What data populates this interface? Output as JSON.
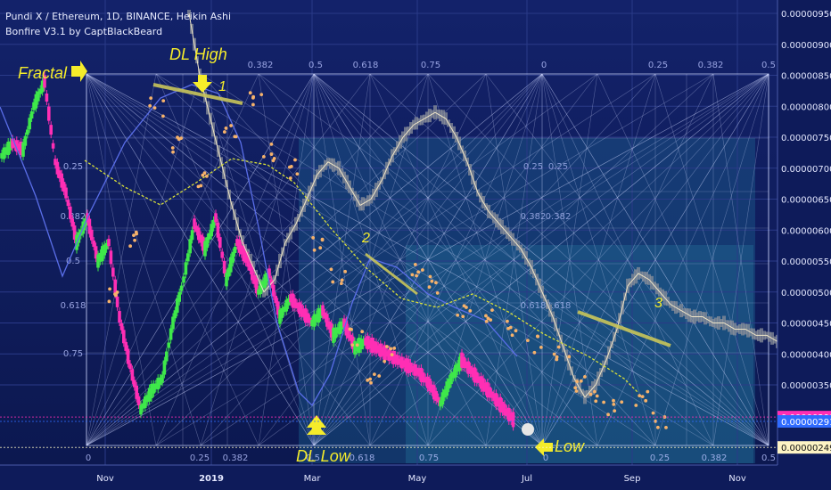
{
  "header": {
    "title": "Pundi X / Ethereum, 1D, BINANCE, Heikin Ashi",
    "indicator": "Bonfire V3.1 by CaptBlackBeard"
  },
  "colors": {
    "background": "#0e1b5a",
    "bull_candle": "#3ee84a",
    "bear_candle": "#ff2eb4",
    "gray_candle": "#8a8f9a",
    "orange_dots": "#f6b26b",
    "yellow_line": "#d8e03a",
    "blue_line": "#5a6ee8",
    "fib_lines": "#d0d8ff",
    "annotation": "#f5ec2a",
    "tag_pink": "#ff2eb4",
    "tag_blue": "#2f6bff",
    "tag_cream": "#fdf3c4"
  },
  "chart_data": {
    "type": "candlestick",
    "title": "Pundi X / Ethereum, 1D, BINANCE, Heikin Ashi",
    "y_ticks": [
      "0.00000950",
      "0.00000900",
      "0.00000850",
      "0.00000800",
      "0.00000750",
      "0.00000700",
      "0.00000650",
      "0.00000600",
      "0.00000550",
      "0.00000500",
      "0.00000450",
      "0.00000400",
      "0.00000350"
    ],
    "y_range": [
      2.4e-06,
      9.7e-06
    ],
    "price_tags": [
      {
        "label": "0.00000298",
        "value": 2.98e-06,
        "color": "#ff2eb4"
      },
      {
        "label": "0.00000291",
        "value": 2.91e-06,
        "color": "#2f6bff"
      },
      {
        "label": "0.00000249",
        "value": 2.49e-06,
        "color": "#fdf3c4"
      }
    ],
    "x_ticks": [
      "Nov",
      "2019",
      "Mar",
      "May",
      "Jul",
      "Sep",
      "Nov"
    ],
    "fib_levels_top": [
      "0.382",
      "0.5",
      "0.618",
      "0.75",
      "0",
      "0.25",
      "0.382",
      "0.5"
    ],
    "fib_levels_bottom": [
      "0",
      "0.25",
      "0.382",
      "0.5",
      "0.618",
      "0.75",
      "0",
      "0.25",
      "0.382",
      "0.5"
    ],
    "fib_levels_left": [
      "0.25",
      "0.382",
      "0.5",
      "0.618",
      "0.75"
    ],
    "fib_levels_mid": [
      "0.25",
      "0.25",
      "0.382",
      "0.382",
      "0.618",
      "0.618"
    ],
    "annotations": {
      "fractal": "Fractal",
      "dl_high": "DL High",
      "dl_low": "DL Low",
      "low": "Low",
      "trend_1": "1",
      "trend_2": "2",
      "trend_3": "3"
    },
    "pink_bull_series": [
      [
        0,
        7.2e-06
      ],
      [
        10,
        7.4e-06
      ],
      [
        20,
        7.3e-06
      ],
      [
        30,
        8e-06
      ],
      [
        40,
        8.4e-06
      ],
      [
        50,
        7.1e-06
      ],
      [
        60,
        6.6e-06
      ],
      [
        70,
        5.8e-06
      ],
      [
        80,
        6.2e-06
      ],
      [
        90,
        5.5e-06
      ],
      [
        100,
        5.8e-06
      ],
      [
        110,
        4.6e-06
      ],
      [
        120,
        3.8e-06
      ],
      [
        130,
        3.1e-06
      ],
      [
        140,
        3.4e-06
      ],
      [
        150,
        3.6e-06
      ],
      [
        160,
        4.5e-06
      ],
      [
        170,
        5.2e-06
      ],
      [
        180,
        6.1e-06
      ],
      [
        190,
        5.7e-06
      ],
      [
        200,
        6.2e-06
      ],
      [
        210,
        5.2e-06
      ],
      [
        220,
        5.8e-06
      ],
      [
        230,
        5.5e-06
      ],
      [
        240,
        5e-06
      ],
      [
        250,
        5.3e-06
      ],
      [
        260,
        4.6e-06
      ],
      [
        270,
        4.9e-06
      ],
      [
        280,
        4.7e-06
      ],
      [
        290,
        4.5e-06
      ],
      [
        300,
        4.7e-06
      ],
      [
        310,
        4.3e-06
      ],
      [
        320,
        4.5e-06
      ],
      [
        330,
        4.1e-06
      ],
      [
        340,
        4.2e-06
      ],
      [
        350,
        4.1e-06
      ],
      [
        360,
        4e-06
      ],
      [
        370,
        3.9e-06
      ],
      [
        380,
        3.8e-06
      ],
      [
        390,
        3.7e-06
      ],
      [
        400,
        3.5e-06
      ],
      [
        410,
        3.2e-06
      ],
      [
        420,
        3.6e-06
      ],
      [
        430,
        3.9e-06
      ],
      [
        440,
        3.7e-06
      ],
      [
        450,
        3.5e-06
      ],
      [
        460,
        3.3e-06
      ],
      [
        470,
        3.1e-06
      ],
      [
        480,
        2.9e-06
      ]
    ],
    "gray_series": [
      [
        175,
        9.5e-06
      ],
      [
        185,
        8.5e-06
      ],
      [
        195,
        7.8e-06
      ],
      [
        205,
        7.1e-06
      ],
      [
        215,
        6.4e-06
      ],
      [
        225,
        5.8e-06
      ],
      [
        235,
        5.4e-06
      ],
      [
        245,
        5e-06
      ],
      [
        255,
        5.2e-06
      ],
      [
        265,
        5.8e-06
      ],
      [
        275,
        6.1e-06
      ],
      [
        285,
        6.5e-06
      ],
      [
        295,
        6.9e-06
      ],
      [
        305,
        7.1e-06
      ],
      [
        315,
        7e-06
      ],
      [
        325,
        6.7e-06
      ],
      [
        335,
        6.4e-06
      ],
      [
        345,
        6.5e-06
      ],
      [
        355,
        6.8e-06
      ],
      [
        365,
        7.2e-06
      ],
      [
        375,
        7.5e-06
      ],
      [
        385,
        7.7e-06
      ],
      [
        395,
        7.8e-06
      ],
      [
        405,
        7.9e-06
      ],
      [
        415,
        7.8e-06
      ],
      [
        425,
        7.5e-06
      ],
      [
        435,
        7.1e-06
      ],
      [
        445,
        6.6e-06
      ],
      [
        455,
        6.3e-06
      ],
      [
        465,
        6.1e-06
      ],
      [
        475,
        5.9e-06
      ],
      [
        485,
        5.7e-06
      ],
      [
        495,
        5.4e-06
      ],
      [
        505,
        5e-06
      ],
      [
        515,
        4.6e-06
      ],
      [
        525,
        4.1e-06
      ],
      [
        535,
        3.6e-06
      ],
      [
        545,
        3.3e-06
      ],
      [
        555,
        3.5e-06
      ],
      [
        565,
        3.9e-06
      ],
      [
        575,
        4.4e-06
      ],
      [
        585,
        5.1e-06
      ],
      [
        595,
        5.3e-06
      ],
      [
        605,
        5.2e-06
      ],
      [
        615,
        5e-06
      ],
      [
        625,
        4.8e-06
      ],
      [
        635,
        4.7e-06
      ],
      [
        645,
        4.6e-06
      ],
      [
        655,
        4.6e-06
      ],
      [
        665,
        4.5e-06
      ],
      [
        675,
        4.5e-06
      ],
      [
        685,
        4.4e-06
      ],
      [
        695,
        4.4e-06
      ],
      [
        705,
        4.3e-06
      ],
      [
        715,
        4.3e-06
      ],
      [
        725,
        4.2e-06
      ],
      [
        735,
        4.1e-06
      ],
      [
        745,
        4.1e-06
      ]
    ]
  }
}
